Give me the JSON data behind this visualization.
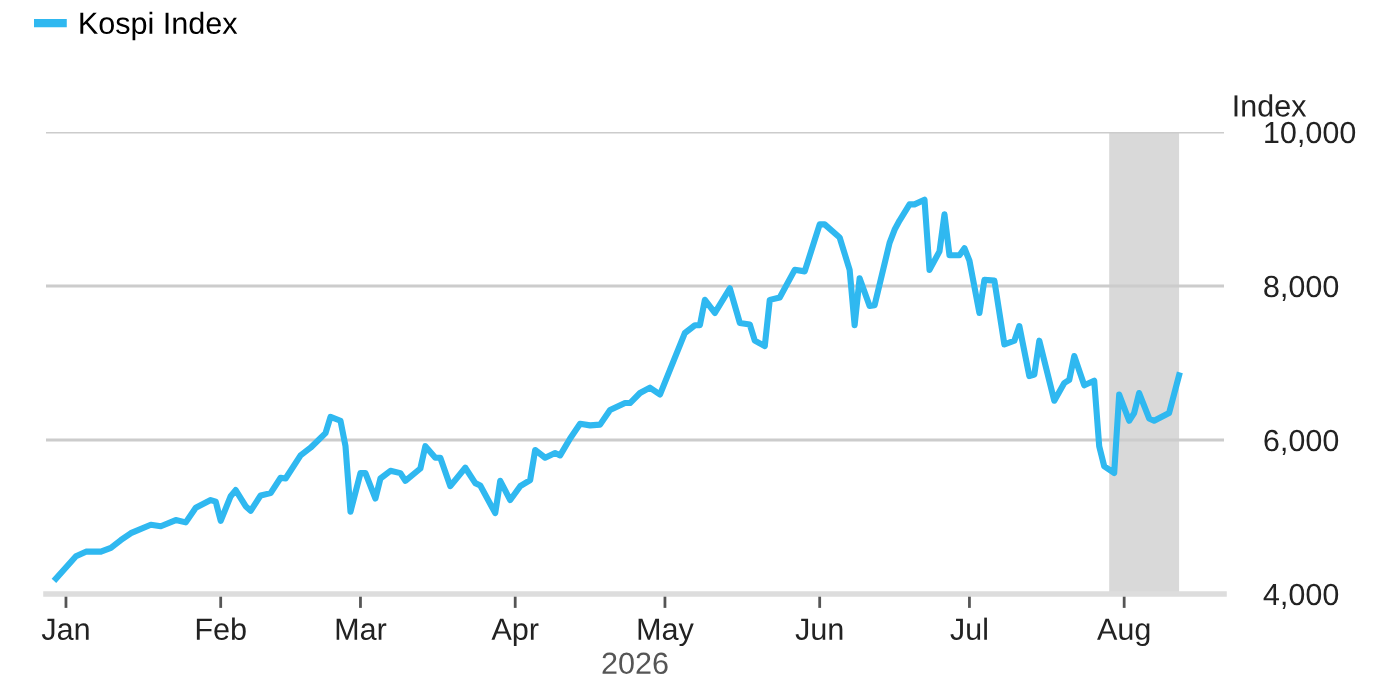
{
  "chart_data": {
    "type": "line",
    "xlabel": "2026",
    "ylabel": "Index",
    "x": [
      "2025-12-30",
      "2026-01-03",
      "2026-01-05",
      "2026-01-08",
      "2026-01-10",
      "2026-01-12",
      "2026-01-14",
      "2026-01-18",
      "2026-01-20",
      "2026-01-23",
      "2026-01-25",
      "2026-01-27",
      "2026-01-30",
      "2026-01-31",
      "2026-02-01",
      "2026-02-03",
      "2026-02-04",
      "2026-02-06",
      "2026-02-07",
      "2026-02-09",
      "2026-02-11",
      "2026-02-13",
      "2026-02-14",
      "2026-02-17",
      "2026-02-19",
      "2026-02-22",
      "2026-02-23",
      "2026-02-25",
      "2026-02-26",
      "2026-02-27",
      "2026-03-01",
      "2026-03-02",
      "2026-03-04",
      "2026-03-05",
      "2026-03-07",
      "2026-03-09",
      "2026-03-10",
      "2026-03-13",
      "2026-03-14",
      "2026-03-16",
      "2026-03-17",
      "2026-03-19",
      "2026-03-22",
      "2026-03-24",
      "2026-03-25",
      "2026-03-28",
      "2026-03-29",
      "2026-03-31",
      "2026-04-02",
      "2026-04-04",
      "2026-04-05",
      "2026-04-07",
      "2026-04-09",
      "2026-04-10",
      "2026-04-12",
      "2026-04-14",
      "2026-04-16",
      "2026-04-18",
      "2026-04-20",
      "2026-04-23",
      "2026-04-24",
      "2026-04-26",
      "2026-04-28",
      "2026-04-30",
      "2026-05-02",
      "2026-05-05",
      "2026-05-07",
      "2026-05-08",
      "2026-05-09",
      "2026-05-11",
      "2026-05-14",
      "2026-05-16",
      "2026-05-18",
      "2026-05-19",
      "2026-05-21",
      "2026-05-22",
      "2026-05-24",
      "2026-05-27",
      "2026-05-29",
      "2026-06-01",
      "2026-06-02",
      "2026-06-05",
      "2026-06-07",
      "2026-06-08",
      "2026-06-09",
      "2026-06-11",
      "2026-06-12",
      "2026-06-15",
      "2026-06-16",
      "2026-06-17",
      "2026-06-19",
      "2026-06-20",
      "2026-06-22",
      "2026-06-23",
      "2026-06-25",
      "2026-06-26",
      "2026-06-27",
      "2026-06-29",
      "2026-06-30",
      "2026-07-01",
      "2026-07-03",
      "2026-07-04",
      "2026-07-06",
      "2026-07-08",
      "2026-07-10",
      "2026-07-11",
      "2026-07-13",
      "2026-07-14",
      "2026-07-15",
      "2026-07-18",
      "2026-07-20",
      "2026-07-21",
      "2026-07-22",
      "2026-07-24",
      "2026-07-26",
      "2026-07-27",
      "2026-07-28",
      "2026-07-30",
      "2026-07-31",
      "2026-08-02",
      "2026-08-03",
      "2026-08-04",
      "2026-08-06",
      "2026-08-07",
      "2026-08-10",
      "2026-08-12"
    ],
    "series": [
      {
        "name": "Kospi Index",
        "color": "#2fb8f0",
        "values": [
          4200,
          4490,
          4550,
          4550,
          4600,
          4700,
          4790,
          4900,
          4880,
          4960,
          4930,
          5120,
          5220,
          5200,
          4950,
          5270,
          5350,
          5140,
          5080,
          5280,
          5310,
          5510,
          5500,
          5800,
          5900,
          6090,
          6300,
          6250,
          5920,
          5070,
          5570,
          5570,
          5240,
          5500,
          5600,
          5570,
          5470,
          5630,
          5920,
          5770,
          5770,
          5400,
          5640,
          5440,
          5410,
          5050,
          5470,
          5220,
          5400,
          5480,
          5870,
          5770,
          5830,
          5800,
          6020,
          6210,
          6190,
          6200,
          6390,
          6480,
          6480,
          6610,
          6680,
          6590,
          6910,
          7390,
          7490,
          7490,
          7820,
          7650,
          7970,
          7520,
          7500,
          7290,
          7220,
          7820,
          7850,
          8210,
          8190,
          8800,
          8800,
          8630,
          8210,
          7490,
          8100,
          7740,
          7750,
          8560,
          8730,
          8850,
          9060,
          9060,
          9120,
          8210,
          8450,
          8930,
          8400,
          8400,
          8490,
          8330,
          7650,
          8080,
          8070,
          7240,
          7290,
          7480,
          6830,
          6850,
          7290,
          6510,
          6740,
          6780,
          7090,
          6710,
          6770,
          5920,
          5660,
          5570,
          6590,
          6250,
          6350,
          6610,
          6280,
          6250,
          6350,
          6840
        ]
      }
    ],
    "xlim": [
      "2025-12-28",
      "2026-08-21"
    ],
    "xticks": [
      {
        "value": "2026-01-01",
        "label": "Jan"
      },
      {
        "value": "2026-02-01",
        "label": "Feb"
      },
      {
        "value": "2026-03-01",
        "label": "Mar"
      },
      {
        "value": "2026-04-01",
        "label": "Apr"
      },
      {
        "value": "2026-05-01",
        "label": "May"
      },
      {
        "value": "2026-06-01",
        "label": "Jun"
      },
      {
        "value": "2026-07-01",
        "label": "Jul"
      },
      {
        "value": "2026-08-01",
        "label": "Aug"
      }
    ],
    "ylim": [
      4000,
      10000
    ],
    "yticks": [
      {
        "value": 4000,
        "label": "4,000"
      },
      {
        "value": 6000,
        "label": "6,000"
      },
      {
        "value": 8000,
        "label": "8,000"
      },
      {
        "value": 10000,
        "label": "10,000"
      }
    ],
    "bands": [
      {
        "axis": "x",
        "from": "2026-07-29",
        "to": "2026-08-12",
        "color": "#d9d9d9"
      }
    ],
    "grid": "y",
    "legend": "top left",
    "marker": "none",
    "line_style": "solid"
  }
}
